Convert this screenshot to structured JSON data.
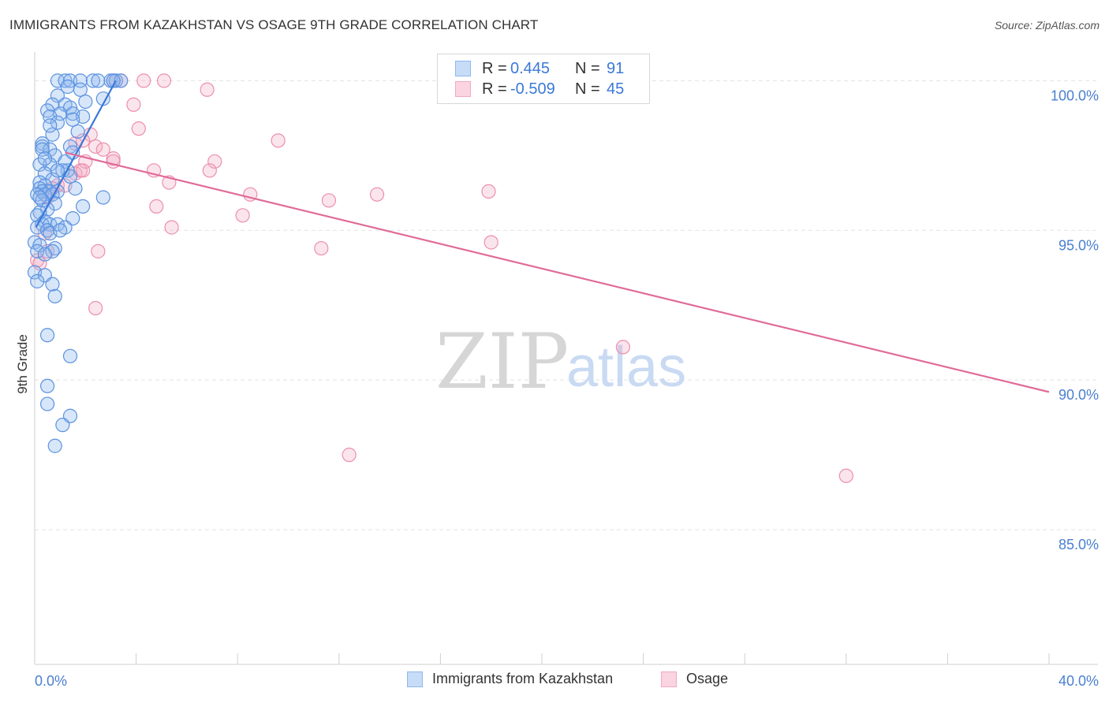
{
  "header": {
    "title": "IMMIGRANTS FROM KAZAKHSTAN VS OSAGE 9TH GRADE CORRELATION CHART",
    "source": "Source: ZipAtlas.com"
  },
  "watermark": {
    "zip": "ZIP",
    "atlas": "atlas"
  },
  "legend": {
    "rows": [
      {
        "r_label": "R =",
        "r_value": "0.445",
        "n_label": "N =",
        "n_value": "91",
        "color": "#8fb8ef"
      },
      {
        "r_label": "R =",
        "r_value": "-0.509",
        "n_label": "N =",
        "n_value": "45",
        "color": "#f3a9c0"
      }
    ]
  },
  "bottom_legend": [
    {
      "label": "Immigrants from Kazakhstan",
      "color": "#8fb8ef"
    },
    {
      "label": "Osage",
      "color": "#f3a9c0"
    }
  ],
  "chart_data": {
    "type": "scatter",
    "title": "IMMIGRANTS FROM KAZAKHSTAN VS OSAGE 9TH GRADE CORRELATION CHART",
    "xlabel": "",
    "ylabel": "9th Grade",
    "xlim": [
      0,
      40
    ],
    "ylim": [
      80.5,
      100.8
    ],
    "x_tick_labels": [
      "0.0%",
      "40.0%"
    ],
    "y_ticks": [
      100,
      95,
      90,
      85
    ],
    "y_tick_labels": [
      "100.0%",
      "95.0%",
      "90.0%",
      "85.0%"
    ],
    "grid": true,
    "series": [
      {
        "name": "Immigrants from Kazakhstan",
        "color": "#5b93e0",
        "fill": "rgba(143,184,239,0.35)",
        "trend": {
          "x": [
            0.05,
            3.2
          ],
          "y": [
            95.1,
            100.0
          ],
          "color": "#3a78d8"
        },
        "points": [
          [
            0.9,
            100
          ],
          [
            1.2,
            100
          ],
          [
            1.4,
            100
          ],
          [
            1.8,
            100
          ],
          [
            2.3,
            100
          ],
          [
            2.5,
            100
          ],
          [
            3.0,
            100
          ],
          [
            3.2,
            100
          ],
          [
            3.4,
            100
          ],
          [
            3.1,
            100
          ],
          [
            1.3,
            99.8
          ],
          [
            1.8,
            99.7
          ],
          [
            0.9,
            99.5
          ],
          [
            2.7,
            99.4
          ],
          [
            0.7,
            99.2
          ],
          [
            1.2,
            99.2
          ],
          [
            1.4,
            99.1
          ],
          [
            0.5,
            99.0
          ],
          [
            1.0,
            98.9
          ],
          [
            1.5,
            98.9
          ],
          [
            1.9,
            98.8
          ],
          [
            0.6,
            98.8
          ],
          [
            1.5,
            98.7
          ],
          [
            0.9,
            98.6
          ],
          [
            0.7,
            98.2
          ],
          [
            0.3,
            97.9
          ],
          [
            0.3,
            97.8
          ],
          [
            0.6,
            97.7
          ],
          [
            1.4,
            97.8
          ],
          [
            0.8,
            97.5
          ],
          [
            1.2,
            97.3
          ],
          [
            0.6,
            97.2
          ],
          [
            0.2,
            97.2
          ],
          [
            1.3,
            97.0
          ],
          [
            1.1,
            97.0
          ],
          [
            0.4,
            96.9
          ],
          [
            1.4,
            96.8
          ],
          [
            0.7,
            96.7
          ],
          [
            0.2,
            96.6
          ],
          [
            0.4,
            96.5
          ],
          [
            0.2,
            96.4
          ],
          [
            1.6,
            96.4
          ],
          [
            0.3,
            96.3
          ],
          [
            0.6,
            96.3
          ],
          [
            0.9,
            96.3
          ],
          [
            0.1,
            96.2
          ],
          [
            0.4,
            96.2
          ],
          [
            0.7,
            96.2
          ],
          [
            2.7,
            96.1
          ],
          [
            0.3,
            96.0
          ],
          [
            0.8,
            95.9
          ],
          [
            1.9,
            95.8
          ],
          [
            0.5,
            95.7
          ],
          [
            0.2,
            95.6
          ],
          [
            0.1,
            95.5
          ],
          [
            1.5,
            95.4
          ],
          [
            0.4,
            95.3
          ],
          [
            0.3,
            95.2
          ],
          [
            0.6,
            95.2
          ],
          [
            0.9,
            95.2
          ],
          [
            1.2,
            95.1
          ],
          [
            0.1,
            95.1
          ],
          [
            0.5,
            95.0
          ],
          [
            0.6,
            94.9
          ],
          [
            0.0,
            94.6
          ],
          [
            0.2,
            94.5
          ],
          [
            0.8,
            94.4
          ],
          [
            0.1,
            94.3
          ],
          [
            0.7,
            94.3
          ],
          [
            0.4,
            94.2
          ],
          [
            0.0,
            93.6
          ],
          [
            0.4,
            93.5
          ],
          [
            0.1,
            93.3
          ],
          [
            0.7,
            93.2
          ],
          [
            0.8,
            92.8
          ],
          [
            0.5,
            91.5
          ],
          [
            1.4,
            90.8
          ],
          [
            0.5,
            89.8
          ],
          [
            0.5,
            89.2
          ],
          [
            1.4,
            88.8
          ],
          [
            1.1,
            88.5
          ],
          [
            0.8,
            87.8
          ],
          [
            0.3,
            97.7
          ],
          [
            1.5,
            97.6
          ],
          [
            2.0,
            99.3
          ],
          [
            0.9,
            97.0
          ],
          [
            1.7,
            98.3
          ],
          [
            0.2,
            96.1
          ],
          [
            1.0,
            95.0
          ],
          [
            0.4,
            97.4
          ],
          [
            0.6,
            98.5
          ]
        ]
      },
      {
        "name": "Osage",
        "color": "#ec8fac",
        "fill": "rgba(243,169,192,0.3)",
        "trend": {
          "x": [
            1.2,
            40
          ],
          "y": [
            97.6,
            89.6
          ],
          "color": "#e06b98"
        },
        "points": [
          [
            3.1,
            100
          ],
          [
            3.4,
            100
          ],
          [
            4.3,
            100
          ],
          [
            5.1,
            100
          ],
          [
            6.8,
            99.7
          ],
          [
            3.9,
            99.2
          ],
          [
            4.1,
            98.4
          ],
          [
            2.2,
            98.2
          ],
          [
            1.9,
            98.0
          ],
          [
            9.6,
            98.0
          ],
          [
            2.4,
            97.8
          ],
          [
            1.6,
            97.9
          ],
          [
            2.7,
            97.7
          ],
          [
            3.1,
            97.4
          ],
          [
            3.1,
            97.3
          ],
          [
            2.0,
            97.3
          ],
          [
            7.1,
            97.3
          ],
          [
            6.9,
            97.0
          ],
          [
            4.7,
            97.0
          ],
          [
            1.6,
            96.9
          ],
          [
            1.8,
            97.0
          ],
          [
            1.9,
            97.0
          ],
          [
            5.3,
            96.6
          ],
          [
            0.9,
            96.5
          ],
          [
            1.2,
            96.5
          ],
          [
            0.7,
            96.4
          ],
          [
            8.5,
            96.2
          ],
          [
            13.5,
            96.2
          ],
          [
            17.9,
            96.3
          ],
          [
            11.6,
            96.0
          ],
          [
            0.5,
            96.1
          ],
          [
            4.8,
            95.8
          ],
          [
            8.2,
            95.5
          ],
          [
            5.4,
            95.1
          ],
          [
            0.4,
            94.9
          ],
          [
            18.0,
            94.6
          ],
          [
            2.5,
            94.3
          ],
          [
            11.3,
            94.4
          ],
          [
            0.5,
            94.3
          ],
          [
            0.1,
            94.0
          ],
          [
            0.2,
            93.9
          ],
          [
            2.4,
            92.4
          ],
          [
            23.2,
            91.1
          ],
          [
            12.4,
            87.5
          ],
          [
            32.0,
            86.8
          ]
        ]
      }
    ]
  }
}
